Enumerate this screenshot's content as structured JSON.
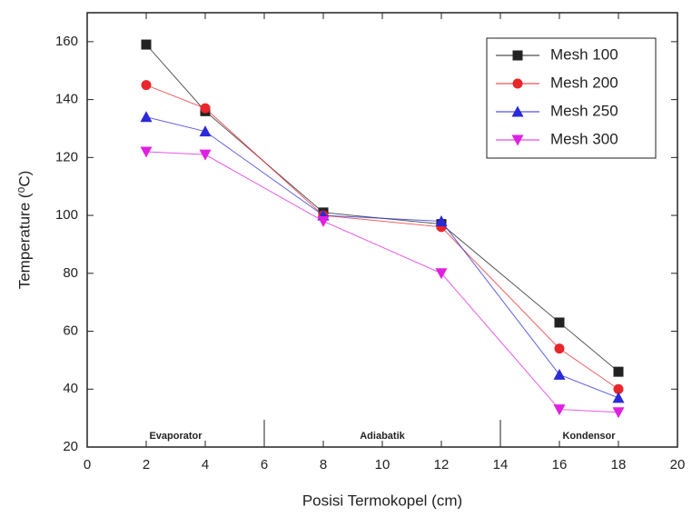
{
  "chart_data": {
    "type": "line",
    "x_label": "Posisi Termokopel (cm)",
    "y_label": "Temperature (⁰C)",
    "x": [
      2,
      4,
      8,
      12,
      16,
      18
    ],
    "series": [
      {
        "name": "Mesh 100",
        "color": "#222222",
        "marker": "square",
        "values": [
          159,
          136,
          101,
          97,
          63,
          46
        ]
      },
      {
        "name": "Mesh 200",
        "color": "#e8262b",
        "marker": "circle",
        "values": [
          145,
          137,
          100,
          96,
          54,
          40
        ]
      },
      {
        "name": "Mesh 250",
        "color": "#2a2ad8",
        "marker": "triangle-up",
        "values": [
          134,
          129,
          100,
          98,
          45,
          37
        ]
      },
      {
        "name": "Mesh 300",
        "color": "#e020e0",
        "marker": "triangle-down",
        "values": [
          122,
          121,
          98,
          80,
          33,
          32
        ]
      }
    ],
    "regions": [
      {
        "label": "Evaporator",
        "from": 0,
        "to": 6
      },
      {
        "label": "Adiabatik",
        "from": 6,
        "to": 14
      },
      {
        "label": "Kondensor",
        "from": 14,
        "to": 20
      }
    ],
    "xlim": [
      0,
      20
    ],
    "xticks": [
      0,
      2,
      4,
      6,
      8,
      10,
      12,
      14,
      16,
      18,
      20
    ],
    "ylim": [
      20,
      170
    ],
    "yticks": [
      20,
      40,
      60,
      80,
      100,
      120,
      140,
      160
    ],
    "legend": "upper right",
    "grid": false
  }
}
